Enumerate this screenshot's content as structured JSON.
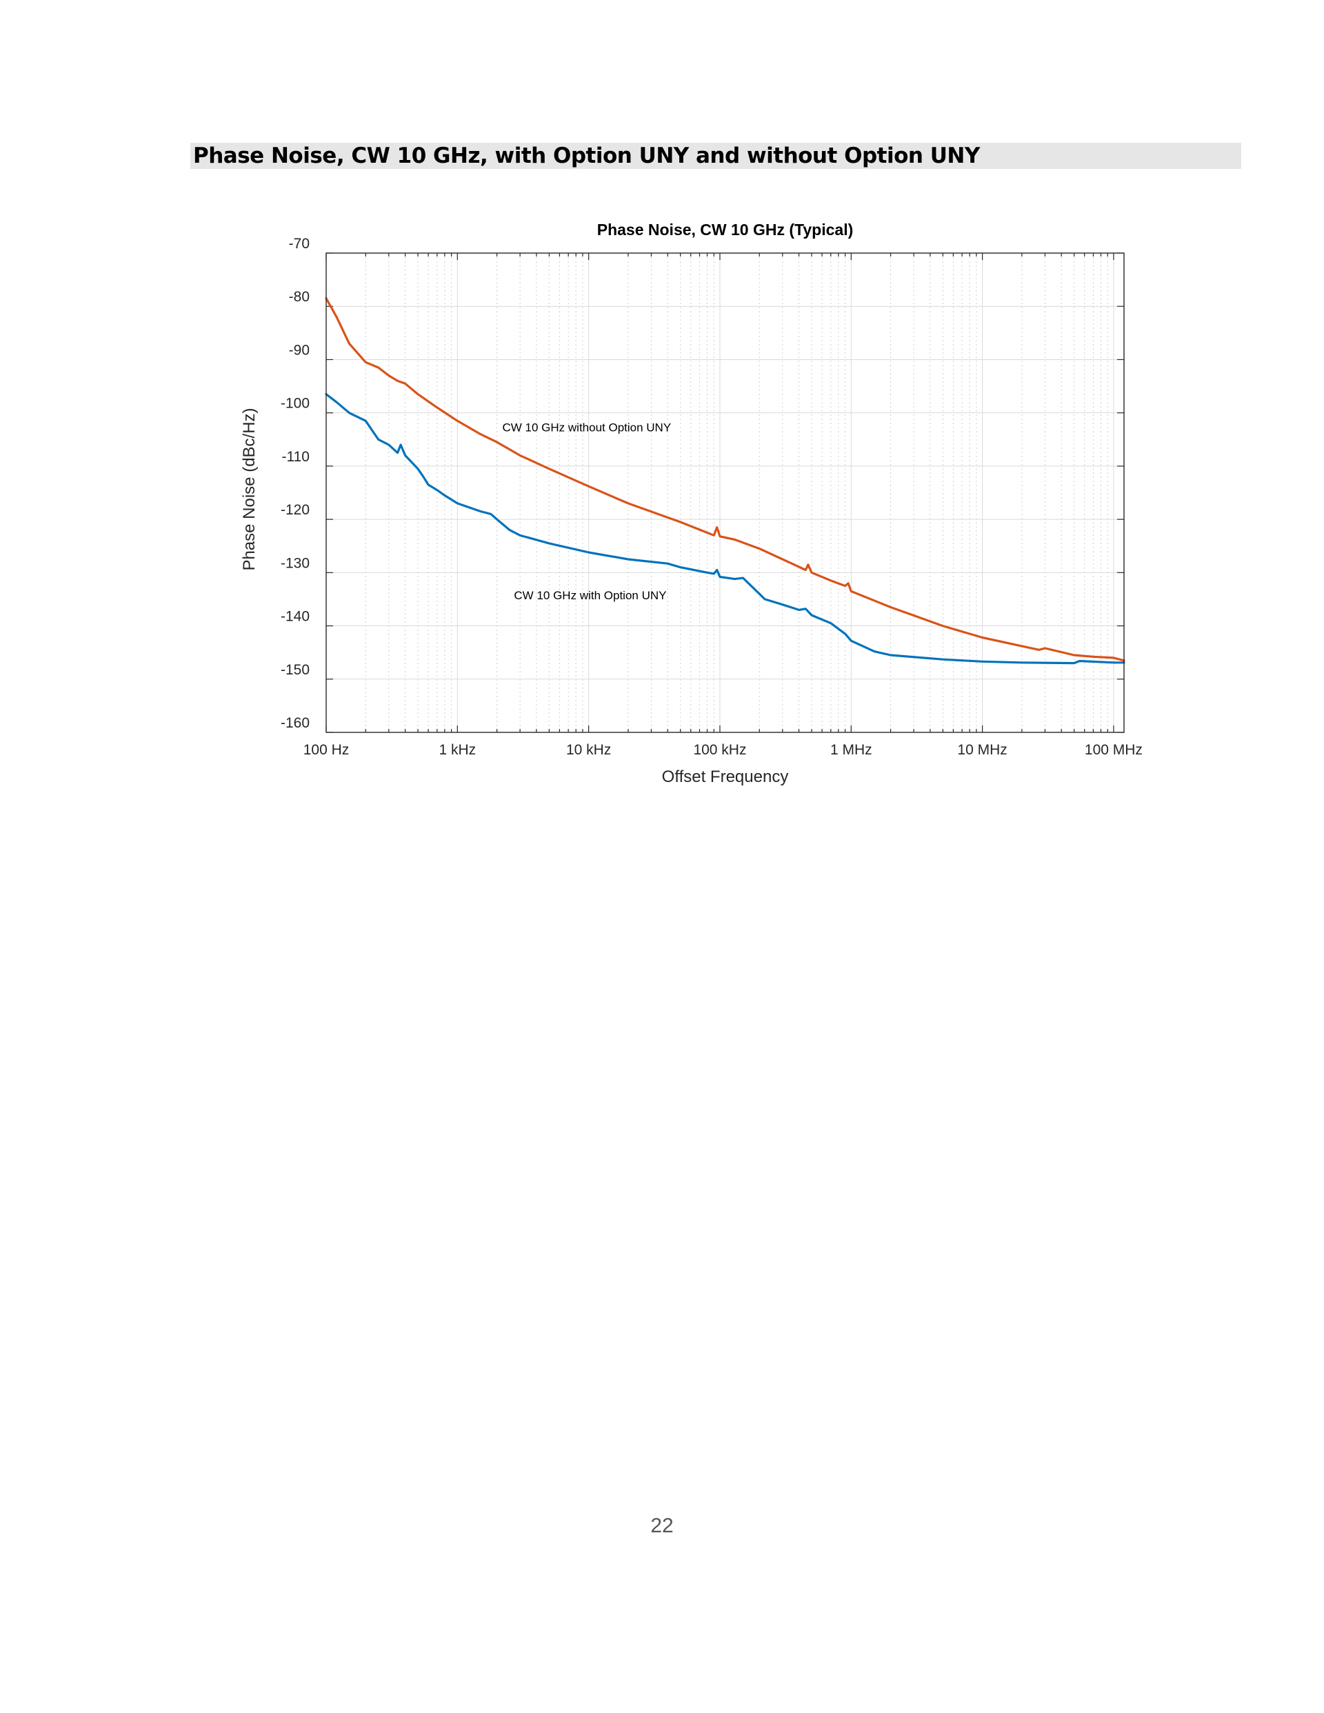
{
  "page": {
    "heading": "Phase Noise, CW 10 GHz, with Option UNY and without Option UNY",
    "page_number": "22"
  },
  "chart_data": {
    "type": "line",
    "title": "Phase Noise, CW 10 GHz (Typical)",
    "xlabel": "Offset Frequency",
    "ylabel": "Phase Noise (dBc/Hz)",
    "x_scale": "log",
    "xlim": [
      100,
      120000000
    ],
    "ylim": [
      -160,
      -70
    ],
    "grid": true,
    "x_ticks": [
      {
        "value": 100,
        "label": "100 Hz"
      },
      {
        "value": 1000,
        "label": "1 kHz"
      },
      {
        "value": 10000,
        "label": "10 kHz"
      },
      {
        "value": 100000,
        "label": "100 kHz"
      },
      {
        "value": 1000000,
        "label": "1 MHz"
      },
      {
        "value": 10000000,
        "label": "10 MHz"
      },
      {
        "value": 100000000,
        "label": "100 MHz"
      }
    ],
    "y_ticks": [
      {
        "value": -70,
        "label": "-70"
      },
      {
        "value": -80,
        "label": "-80"
      },
      {
        "value": -90,
        "label": "-90"
      },
      {
        "value": -100,
        "label": "-100"
      },
      {
        "value": -110,
        "label": "-110"
      },
      {
        "value": -120,
        "label": "-120"
      },
      {
        "value": -130,
        "label": "-130"
      },
      {
        "value": -140,
        "label": "-140"
      },
      {
        "value": -150,
        "label": "-150"
      },
      {
        "value": -160,
        "label": "-160"
      }
    ],
    "annotations": [
      {
        "text": "CW 10 GHz without Option UNY",
        "x": 2200,
        "y": -103.5
      },
      {
        "text": "CW 10 GHz with Option UNY",
        "x": 2700,
        "y": -135
      }
    ],
    "series": [
      {
        "color": "#d95319",
        "x": [
          100,
          120,
          150,
          200,
          250,
          300,
          350,
          400,
          500,
          700,
          1000,
          1500,
          2000,
          3000,
          5000,
          10000,
          20000,
          50000,
          90000,
          95000,
          100000,
          130000,
          200000,
          300000,
          450000,
          470000,
          500000,
          700000,
          900000,
          950000,
          1000000,
          2000000,
          5000000,
          10000000,
          20000000,
          27000000,
          30000000,
          50000000,
          70000000,
          100000000,
          120000000
        ],
        "y": [
          -78.5,
          -82,
          -87,
          -90.5,
          -91.5,
          -93,
          -94,
          -94.5,
          -96.5,
          -99,
          -101.5,
          -104,
          -105.5,
          -108,
          -110.5,
          -113.8,
          -117,
          -120.5,
          -123,
          -121.5,
          -123.2,
          -123.8,
          -125.5,
          -127.5,
          -129.5,
          -128.5,
          -130,
          -131.5,
          -132.5,
          -132,
          -133.5,
          -136.5,
          -140,
          -142.2,
          -143.8,
          -144.5,
          -144.2,
          -145.5,
          -145.8,
          -146,
          -146.5
        ]
      },
      {
        "color": "#0072bd",
        "x": [
          100,
          120,
          150,
          200,
          250,
          300,
          350,
          370,
          400,
          500,
          550,
          600,
          700,
          800,
          1000,
          1500,
          1800,
          2000,
          2500,
          3000,
          5000,
          10000,
          20000,
          40000,
          50000,
          80000,
          90000,
          95000,
          100000,
          130000,
          150000,
          200000,
          220000,
          300000,
          400000,
          450000,
          500000,
          700000,
          900000,
          1000000,
          1500000,
          2000000,
          5000000,
          10000000,
          20000000,
          50000000,
          55000000,
          100000000,
          120000000
        ],
        "y": [
          -96.5,
          -98,
          -100,
          -101.5,
          -105,
          -106,
          -107.5,
          -106,
          -108,
          -110.5,
          -112,
          -113.5,
          -114.5,
          -115.5,
          -117,
          -118.5,
          -119,
          -120,
          -122,
          -123,
          -124.5,
          -126.2,
          -127.5,
          -128.3,
          -129,
          -130,
          -130.2,
          -129.5,
          -130.8,
          -131.2,
          -131,
          -134,
          -135,
          -136,
          -137,
          -136.8,
          -138,
          -139.5,
          -141.5,
          -142.8,
          -144.8,
          -145.5,
          -146.3,
          -146.7,
          -146.9,
          -147,
          -146.6,
          -146.9,
          -146.9
        ]
      }
    ]
  }
}
